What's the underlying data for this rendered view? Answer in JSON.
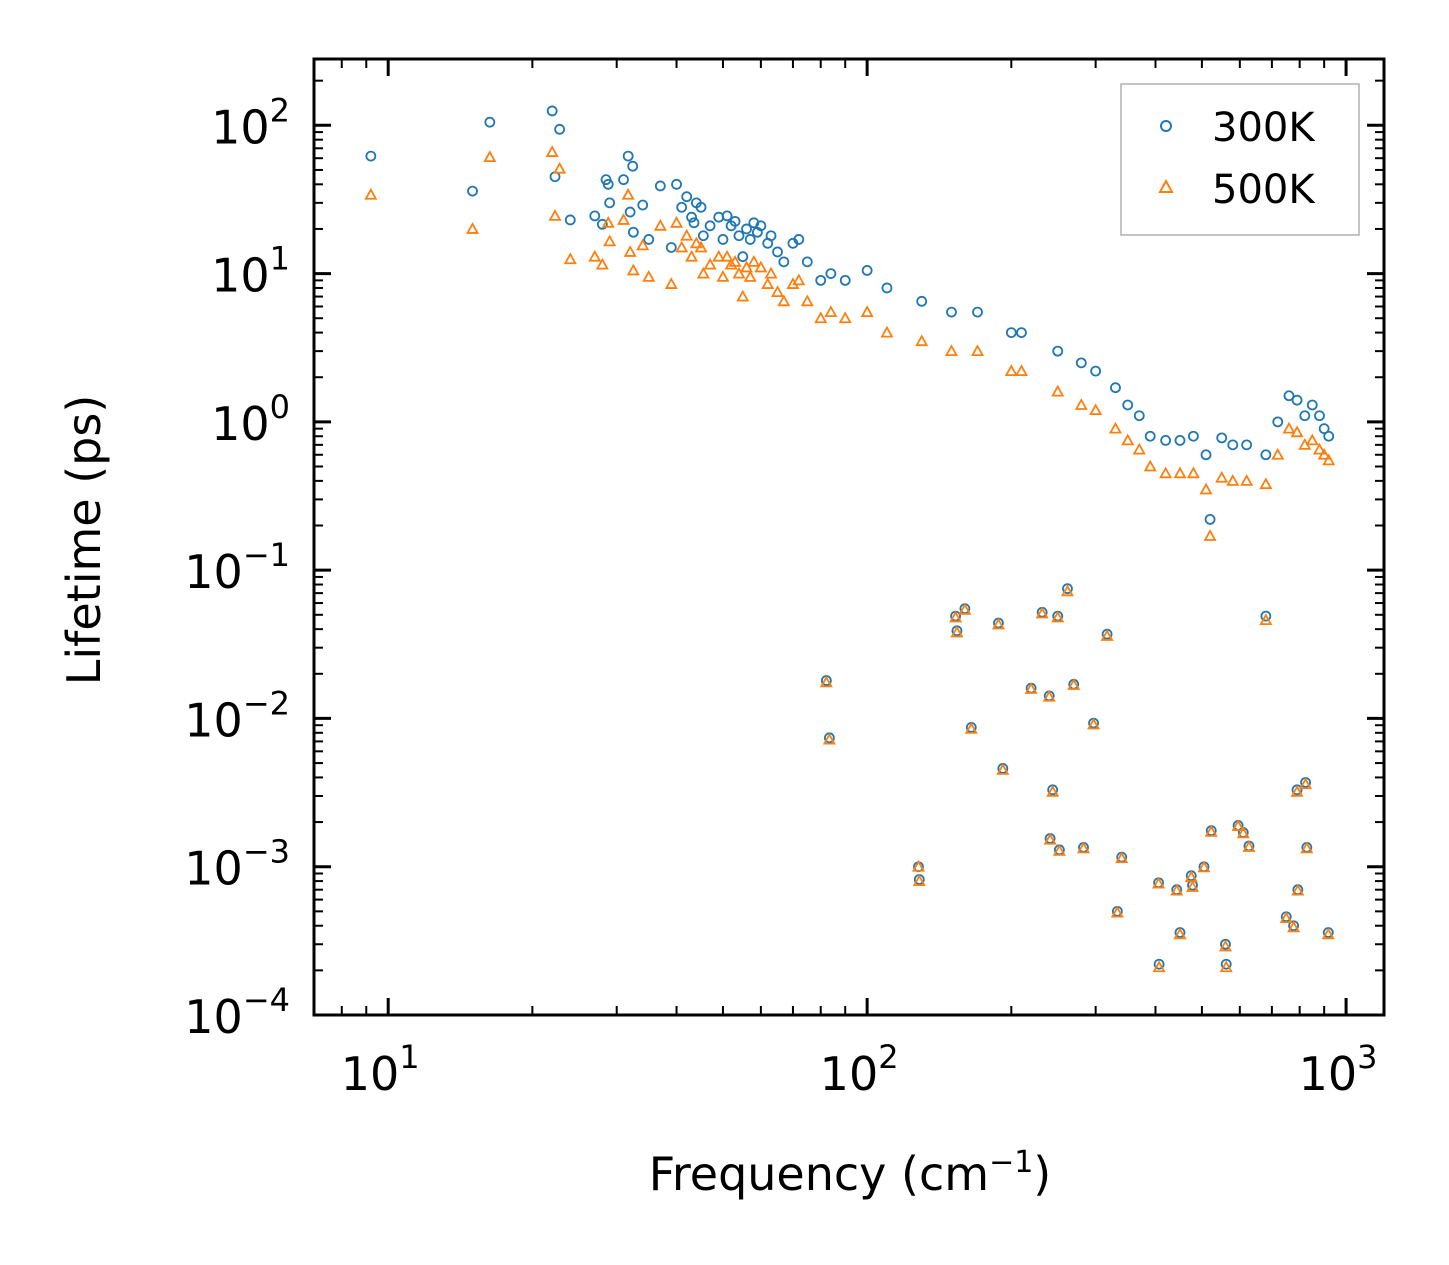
{
  "chart_data": {
    "type": "scatter",
    "title": "",
    "xlabel": "Frequency (cm",
    "xlabel_exp": "−1",
    "xlabel_suffix": ")",
    "ylabel": "Lifetime (ps)",
    "xscale": "log",
    "yscale": "log",
    "xlim": [
      7,
      1200
    ],
    "ylim": [
      0.0001,
      280
    ],
    "x_ticks": [
      {
        "value": 10,
        "base": "10",
        "exp": "1"
      },
      {
        "value": 100,
        "base": "10",
        "exp": "2"
      },
      {
        "value": 1000,
        "base": "10",
        "exp": "3"
      }
    ],
    "y_ticks": [
      {
        "value": 100,
        "base": "10",
        "exp": "2"
      },
      {
        "value": 10,
        "base": "10",
        "exp": "1"
      },
      {
        "value": 1,
        "base": "10",
        "exp": "0"
      },
      {
        "value": 0.1,
        "base": "10",
        "exp": "−1"
      },
      {
        "value": 0.01,
        "base": "10",
        "exp": "−2"
      },
      {
        "value": 0.001,
        "base": "10",
        "exp": "−3"
      },
      {
        "value": 0.0001,
        "base": "10",
        "exp": "−4"
      }
    ],
    "legend_position": "top-right",
    "series": [
      {
        "name": "300K",
        "marker": "circle",
        "color": "#1f77b4",
        "points": [
          [
            9.2,
            62
          ],
          [
            15,
            36
          ],
          [
            16.3,
            105
          ],
          [
            22,
            125
          ],
          [
            22.3,
            45
          ],
          [
            22.8,
            94
          ],
          [
            24,
            23
          ],
          [
            27,
            24.5
          ],
          [
            28,
            21.5
          ],
          [
            28.5,
            43
          ],
          [
            28.8,
            40
          ],
          [
            29,
            30
          ],
          [
            31,
            43
          ],
          [
            31.7,
            62
          ],
          [
            32.4,
            53
          ],
          [
            32,
            26
          ],
          [
            32.5,
            19
          ],
          [
            34,
            29
          ],
          [
            35,
            17
          ],
          [
            37,
            39
          ],
          [
            39,
            15
          ],
          [
            40,
            40
          ],
          [
            41,
            28
          ],
          [
            42,
            33
          ],
          [
            43,
            24
          ],
          [
            43.5,
            22
          ],
          [
            44,
            30
          ],
          [
            45,
            28
          ],
          [
            45.5,
            18
          ],
          [
            47,
            21
          ],
          [
            49,
            24
          ],
          [
            50,
            17
          ],
          [
            51,
            24.5
          ],
          [
            52,
            21
          ],
          [
            53,
            22.5
          ],
          [
            54,
            18
          ],
          [
            55,
            13
          ],
          [
            56,
            20
          ],
          [
            57,
            17
          ],
          [
            58,
            22
          ],
          [
            59,
            19
          ],
          [
            60,
            21
          ],
          [
            62,
            16
          ],
          [
            63,
            18
          ],
          [
            65,
            14
          ],
          [
            67,
            12
          ],
          [
            70,
            16
          ],
          [
            72,
            17
          ],
          [
            75,
            12
          ],
          [
            80,
            9
          ],
          [
            84,
            10
          ],
          [
            90,
            9
          ],
          [
            100,
            10.5
          ],
          [
            110,
            8
          ],
          [
            130,
            6.5
          ],
          [
            150,
            5.5
          ],
          [
            170,
            5.5
          ],
          [
            200,
            4
          ],
          [
            210,
            4
          ],
          [
            250,
            3
          ],
          [
            280,
            2.5
          ],
          [
            300,
            2.2
          ],
          [
            330,
            1.7
          ],
          [
            350,
            1.3
          ],
          [
            370,
            1.1
          ],
          [
            390,
            0.8
          ],
          [
            420,
            0.75
          ],
          [
            450,
            0.75
          ],
          [
            480,
            0.8
          ],
          [
            510,
            0.6
          ],
          [
            520,
            0.22
          ],
          [
            550,
            0.78
          ],
          [
            580,
            0.7
          ],
          [
            620,
            0.7
          ],
          [
            680,
            0.6
          ],
          [
            720,
            1.0
          ],
          [
            760,
            1.5
          ],
          [
            790,
            1.4
          ],
          [
            820,
            1.1
          ],
          [
            850,
            1.3
          ],
          [
            880,
            1.1
          ],
          [
            900,
            0.9
          ],
          [
            920,
            0.8
          ],
          [
            82.2,
            0.018
          ],
          [
            83.4,
            0.0074
          ],
          [
            128,
            0.001
          ],
          [
            128.5,
            0.00082
          ],
          [
            153,
            0.049
          ],
          [
            154,
            0.039
          ],
          [
            160,
            0.055
          ],
          [
            165,
            0.0087
          ],
          [
            188,
            0.044
          ],
          [
            192,
            0.0046
          ],
          [
            220,
            0.016
          ],
          [
            232,
            0.052
          ],
          [
            240,
            0.0142
          ],
          [
            241,
            0.00155
          ],
          [
            244,
            0.0033
          ],
          [
            250,
            0.049
          ],
          [
            252,
            0.0013
          ],
          [
            262,
            0.075
          ],
          [
            270,
            0.017
          ],
          [
            283,
            0.00135
          ],
          [
            297,
            0.0093
          ],
          [
            317,
            0.037
          ],
          [
            333,
            0.0005
          ],
          [
            340,
            0.00116
          ],
          [
            406,
            0.00078
          ],
          [
            407,
            0.00022
          ],
          [
            443,
            0.0007
          ],
          [
            450,
            0.00036
          ],
          [
            475,
            0.00087
          ],
          [
            478,
            0.00075
          ],
          [
            505,
            0.001
          ],
          [
            523,
            0.00175
          ],
          [
            560,
            0.0003
          ],
          [
            562,
            0.00022
          ],
          [
            595,
            0.0019
          ],
          [
            610,
            0.0017
          ],
          [
            627,
            0.00138
          ],
          [
            680,
            0.049
          ],
          [
            750,
            0.00046
          ],
          [
            777,
            0.0004
          ],
          [
            790,
            0.0033
          ],
          [
            793,
            0.0007
          ],
          [
            823,
            0.0037
          ],
          [
            828,
            0.00135
          ],
          [
            918,
            0.00036
          ]
        ]
      },
      {
        "name": "500K",
        "marker": "triangle",
        "color": "#ff7f0e",
        "points": [
          [
            9.2,
            34
          ],
          [
            15,
            20
          ],
          [
            16.3,
            61
          ],
          [
            22,
            66
          ],
          [
            22.3,
            24.5
          ],
          [
            22.8,
            51
          ],
          [
            24,
            12.5
          ],
          [
            27,
            13
          ],
          [
            28,
            11.5
          ],
          [
            28.8,
            22
          ],
          [
            29,
            16.5
          ],
          [
            31,
            23
          ],
          [
            31.7,
            34
          ],
          [
            32,
            14
          ],
          [
            32.5,
            10.5
          ],
          [
            34,
            15.5
          ],
          [
            35,
            9.5
          ],
          [
            37,
            21
          ],
          [
            39,
            8.5
          ],
          [
            40,
            22
          ],
          [
            41,
            15
          ],
          [
            42,
            18
          ],
          [
            43,
            13
          ],
          [
            44,
            16
          ],
          [
            45,
            15
          ],
          [
            45.5,
            10
          ],
          [
            47,
            11.5
          ],
          [
            49,
            13
          ],
          [
            50,
            9.5
          ],
          [
            51,
            13
          ],
          [
            52,
            11.5
          ],
          [
            53,
            12
          ],
          [
            54,
            10
          ],
          [
            55,
            7
          ],
          [
            56,
            11
          ],
          [
            57,
            9.5
          ],
          [
            58,
            12
          ],
          [
            60,
            11
          ],
          [
            62,
            8.5
          ],
          [
            63,
            10
          ],
          [
            65,
            7.5
          ],
          [
            67,
            6.5
          ],
          [
            70,
            8.5
          ],
          [
            72,
            9
          ],
          [
            75,
            6.5
          ],
          [
            80,
            5
          ],
          [
            84,
            5.5
          ],
          [
            90,
            5
          ],
          [
            100,
            5.5
          ],
          [
            110,
            4
          ],
          [
            130,
            3.5
          ],
          [
            150,
            3
          ],
          [
            170,
            3
          ],
          [
            200,
            2.2
          ],
          [
            210,
            2.2
          ],
          [
            250,
            1.6
          ],
          [
            280,
            1.3
          ],
          [
            300,
            1.2
          ],
          [
            330,
            0.9
          ],
          [
            350,
            0.75
          ],
          [
            370,
            0.65
          ],
          [
            390,
            0.5
          ],
          [
            420,
            0.45
          ],
          [
            450,
            0.45
          ],
          [
            480,
            0.45
          ],
          [
            510,
            0.35
          ],
          [
            520,
            0.17
          ],
          [
            550,
            0.42
          ],
          [
            580,
            0.4
          ],
          [
            620,
            0.4
          ],
          [
            680,
            0.38
          ],
          [
            720,
            0.6
          ],
          [
            760,
            0.9
          ],
          [
            790,
            0.85
          ],
          [
            820,
            0.7
          ],
          [
            850,
            0.75
          ],
          [
            880,
            0.65
          ],
          [
            900,
            0.6
          ],
          [
            920,
            0.55
          ],
          [
            82.2,
            0.0175
          ],
          [
            83.4,
            0.0072
          ],
          [
            128,
            0.001
          ],
          [
            128.5,
            0.0008
          ],
          [
            153,
            0.048
          ],
          [
            154,
            0.038
          ],
          [
            160,
            0.054
          ],
          [
            165,
            0.0085
          ],
          [
            188,
            0.043
          ],
          [
            192,
            0.0045
          ],
          [
            220,
            0.0158
          ],
          [
            232,
            0.051
          ],
          [
            240,
            0.014
          ],
          [
            241,
            0.00152
          ],
          [
            244,
            0.0032
          ],
          [
            250,
            0.048
          ],
          [
            252,
            0.00128
          ],
          [
            262,
            0.072
          ],
          [
            270,
            0.0168
          ],
          [
            283,
            0.00133
          ],
          [
            297,
            0.0091
          ],
          [
            317,
            0.036
          ],
          [
            333,
            0.00049
          ],
          [
            340,
            0.00114
          ],
          [
            406,
            0.00077
          ],
          [
            407,
            0.00021
          ],
          [
            443,
            0.00069
          ],
          [
            450,
            0.00035
          ],
          [
            475,
            0.00085
          ],
          [
            478,
            0.00073
          ],
          [
            505,
            0.00099
          ],
          [
            523,
            0.00172
          ],
          [
            560,
            0.00029
          ],
          [
            562,
            0.00021
          ],
          [
            595,
            0.00188
          ],
          [
            610,
            0.00168
          ],
          [
            627,
            0.00136
          ],
          [
            680,
            0.046
          ],
          [
            750,
            0.00045
          ],
          [
            777,
            0.00039
          ],
          [
            790,
            0.0032
          ],
          [
            793,
            0.00069
          ],
          [
            823,
            0.0036
          ],
          [
            828,
            0.00133
          ],
          [
            918,
            0.00035
          ]
        ]
      }
    ]
  }
}
